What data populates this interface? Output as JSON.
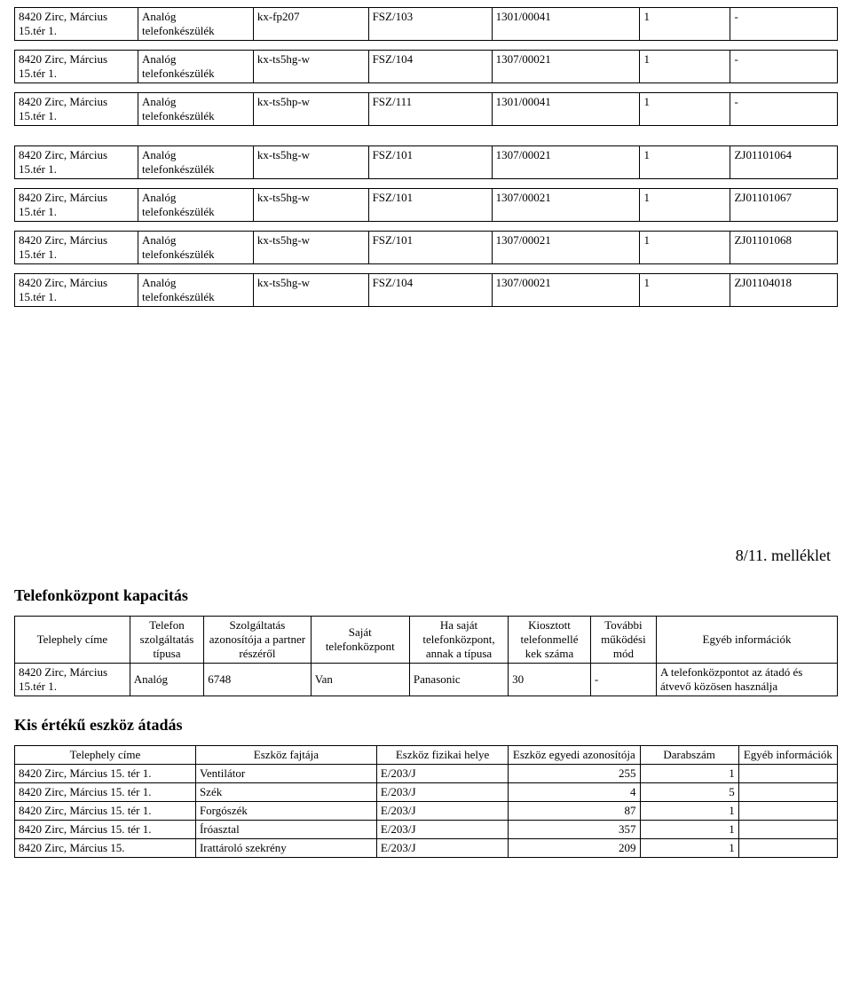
{
  "phones": {
    "group1": [
      {
        "site": "8420 Zirc, Március 15.tér 1.",
        "type": "Analóg telefonkészülék",
        "model": "kx-fp207",
        "slot": "FSZ/103",
        "line": "1301/00041",
        "qty": "1",
        "serial": "-"
      },
      {
        "site": "8420 Zirc, Március 15.tér 1.",
        "type": "Analóg telefonkészülék",
        "model": "kx-ts5hg-w",
        "slot": "FSZ/104",
        "line": "1307/00021",
        "qty": "1",
        "serial": "-"
      },
      {
        "site": "8420 Zirc, Március 15.tér 1.",
        "type": "Analóg telefonkészülék",
        "model": "kx-ts5hp-w",
        "slot": "FSZ/111",
        "line": "1301/00041",
        "qty": "1",
        "serial": "-"
      }
    ],
    "group2": [
      {
        "site": "8420 Zirc, Március 15.tér 1.",
        "type": "Analóg telefonkészülék",
        "model": "kx-ts5hg-w",
        "slot": "FSZ/101",
        "line": "1307/00021",
        "qty": "1",
        "serial": "ZJ01101064"
      },
      {
        "site": "8420 Zirc, Március 15.tér 1.",
        "type": "Analóg telefonkészülék",
        "model": "kx-ts5hg-w",
        "slot": "FSZ/101",
        "line": "1307/00021",
        "qty": "1",
        "serial": "ZJ01101067"
      },
      {
        "site": "8420 Zirc, Március 15.tér 1.",
        "type": "Analóg telefonkészülék",
        "model": "kx-ts5hg-w",
        "slot": "FSZ/101",
        "line": "1307/00021",
        "qty": "1",
        "serial": "ZJ01101068"
      },
      {
        "site": "8420 Zirc, Március 15.tér 1.",
        "type": "Analóg telefonkészülék",
        "model": "kx-ts5hg-w",
        "slot": "FSZ/104",
        "line": "1307/00021",
        "qty": "1",
        "serial": "ZJ01104018"
      }
    ]
  },
  "annex_label": "8/11. melléklet",
  "capacity": {
    "title": "Telefonközpont kapacitás",
    "headers": {
      "site": "Telephely címe",
      "svc_type": "Telefon szolgáltatás típusa",
      "svc_id": "Szolgáltatás azonosítója a partner részéről",
      "own_exchange": "Saját telefonközpont",
      "own_exchange_type": "Ha saját telefonközpont, annak a típusa",
      "ext_count": "Kiosztott telefonmellé kek száma",
      "mode": "További működési mód",
      "other": "Egyéb információk"
    },
    "row": {
      "site": "8420 Zirc, Március 15.tér 1.",
      "svc_type": "Analóg",
      "svc_id": "6748",
      "own_exchange": "Van",
      "own_exchange_type": "Panasonic",
      "ext_count": "30",
      "mode": "-",
      "other": "A telefonközpontot az átadó és átvevő közösen használja"
    }
  },
  "assets": {
    "title": "Kis értékű eszköz átadás",
    "headers": {
      "site": "Telephely címe",
      "kind": "Eszköz fajtája",
      "loc": "Eszköz fizikai helye",
      "id": "Eszköz egyedi azonosítója",
      "count": "Darabszám",
      "other": "Egyéb információk"
    },
    "rows": [
      {
        "site": "8420 Zirc, Március 15. tér 1.",
        "kind": "Ventilátor",
        "loc": "E/203/J",
        "id": "255",
        "count": "1",
        "other": ""
      },
      {
        "site": "8420 Zirc, Március 15. tér 1.",
        "kind": "Szék",
        "loc": "E/203/J",
        "id": "4",
        "count": "5",
        "other": ""
      },
      {
        "site": "8420 Zirc, Március 15. tér 1.",
        "kind": "Forgószék",
        "loc": "E/203/J",
        "id": "87",
        "count": "1",
        "other": ""
      },
      {
        "site": "8420 Zirc, Március 15. tér 1.",
        "kind": "Íróasztal",
        "loc": "E/203/J",
        "id": "357",
        "count": "1",
        "other": ""
      },
      {
        "site": "8420 Zirc, Március 15.",
        "kind": "Irattároló szekrény",
        "loc": "E/203/J",
        "id": "209",
        "count": "1",
        "other": ""
      }
    ]
  }
}
